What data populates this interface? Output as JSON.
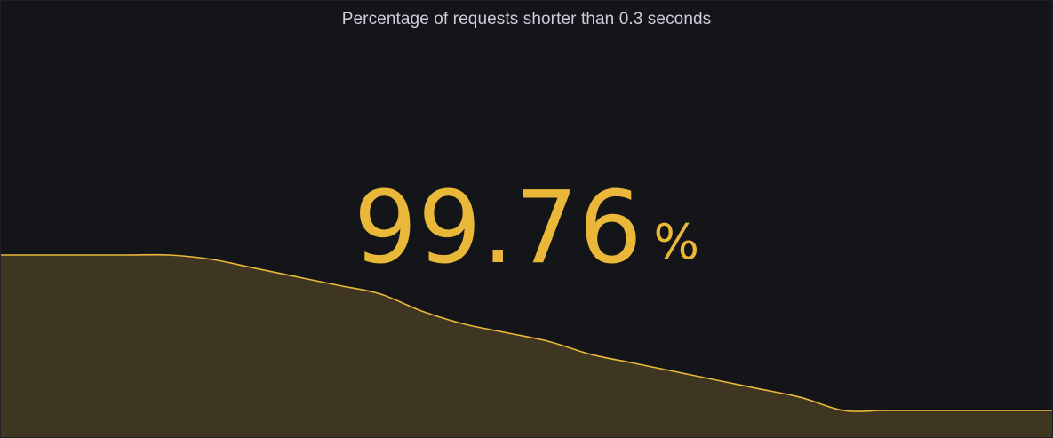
{
  "panel": {
    "title": "Percentage of requests shorter than 0.3 seconds"
  },
  "stat": {
    "value": "99.76",
    "unit": "%",
    "color": "#EAB839"
  },
  "sparkline": {
    "line_color": "#EAB839",
    "fill_color": "#3E3620",
    "relative_levels": [
      0.36,
      0.36,
      0.36,
      0.36,
      0.36,
      0.35,
      0.33,
      0.31,
      0.29,
      0.27,
      0.23,
      0.2,
      0.18,
      0.16,
      0.13,
      0.11,
      0.09,
      0.07,
      0.05,
      0.03,
      0.0,
      0.0,
      0.0,
      0.0,
      0.0,
      0.0
    ]
  }
}
